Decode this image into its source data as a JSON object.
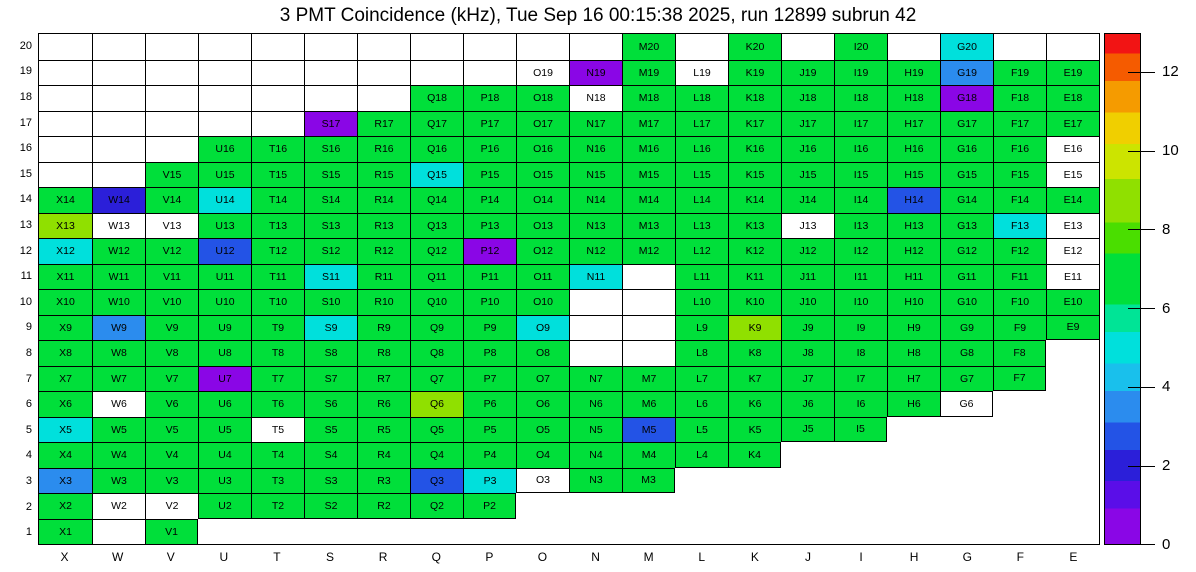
{
  "chart_data": {
    "type": "heatmap",
    "title": "3 PMT Coincidence (kHz), Tue Sep 16 00:15:38 2025, run 12899 subrun 42",
    "timestamp": "Tue Sep 16 00:15:38 2025",
    "run": 12899,
    "subrun": 42,
    "x_labels": [
      "X",
      "W",
      "V",
      "U",
      "T",
      "S",
      "R",
      "Q",
      "P",
      "O",
      "N",
      "M",
      "L",
      "K",
      "J",
      "I",
      "H",
      "G",
      "F",
      "E"
    ],
    "y_labels": [
      "20",
      "19",
      "18",
      "17",
      "16",
      "15",
      "14",
      "13",
      "12",
      "11",
      "10",
      "9",
      "8",
      "7",
      "6",
      "5",
      "4",
      "3",
      "2",
      "1"
    ],
    "zlim": [
      0,
      13
    ],
    "colorbar_ticks": [
      12,
      10,
      8,
      6,
      4,
      2,
      0
    ],
    "legend_position": "right",
    "grid": "cell-outlines",
    "cell_encoding": {
      "number": "estimated rate in kHz read off the color scale",
      "w": "zero-rate channel drawn as white cell with label",
      "e": "empty outlined cell without label",
      "null": "cell not drawn"
    },
    "palette_stops": [
      {
        "to": 0.9,
        "color": "#8a06e6"
      },
      {
        "to": 1.6,
        "color": "#5a0ee8"
      },
      {
        "to": 2.4,
        "color": "#2b1fd9"
      },
      {
        "to": 3.1,
        "color": "#2353e6"
      },
      {
        "to": 3.9,
        "color": "#2b8cee"
      },
      {
        "to": 4.6,
        "color": "#19c0ec"
      },
      {
        "to": 5.4,
        "color": "#00e0dc"
      },
      {
        "to": 6.1,
        "color": "#00e496"
      },
      {
        "to": 7.4,
        "color": "#00df3a"
      },
      {
        "to": 8.2,
        "color": "#4ade00"
      },
      {
        "to": 9.3,
        "color": "#90e000"
      },
      {
        "to": 10.2,
        "color": "#cce400"
      },
      {
        "to": 11.0,
        "color": "#f0cf00"
      },
      {
        "to": 11.8,
        "color": "#f59b00"
      },
      {
        "to": 12.5,
        "color": "#f55b00"
      },
      {
        "to": 13.0,
        "color": "#f21414"
      }
    ],
    "rows": [
      {
        "y": "20",
        "cells": [
          "e",
          "e",
          "e",
          "e",
          "e",
          "e",
          "e",
          "e",
          "e",
          "e",
          "e",
          6.8,
          "e",
          6.8,
          "e",
          6.8,
          "e",
          5.0,
          "e",
          "e"
        ]
      },
      {
        "y": "19",
        "cells": [
          "e",
          "e",
          "e",
          "e",
          "e",
          "e",
          "e",
          "e",
          "e",
          "w",
          0.5,
          6.8,
          "w",
          6.8,
          6.8,
          6.8,
          6.8,
          3.5,
          6.8,
          6.8
        ]
      },
      {
        "y": "18",
        "cells": [
          "e",
          "e",
          "e",
          "e",
          "e",
          "e",
          "e",
          6.8,
          6.8,
          6.8,
          "w",
          6.8,
          6.8,
          6.8,
          6.8,
          6.8,
          6.8,
          0.5,
          6.8,
          6.8
        ]
      },
      {
        "y": "17",
        "cells": [
          "e",
          "e",
          "e",
          "e",
          "e",
          0.5,
          6.8,
          6.8,
          6.8,
          6.8,
          6.8,
          6.8,
          6.8,
          6.8,
          6.8,
          6.8,
          6.8,
          6.8,
          6.8,
          6.8
        ]
      },
      {
        "y": "16",
        "cells": [
          "e",
          "e",
          "e",
          6.8,
          6.8,
          6.8,
          6.8,
          6.8,
          6.8,
          6.8,
          6.8,
          6.8,
          6.8,
          6.8,
          6.8,
          6.8,
          6.8,
          6.8,
          6.8,
          "w"
        ]
      },
      {
        "y": "15",
        "cells": [
          "e",
          "e",
          6.8,
          6.8,
          6.8,
          6.8,
          6.8,
          5.0,
          6.8,
          6.8,
          6.8,
          6.8,
          6.8,
          6.8,
          6.8,
          6.8,
          6.8,
          6.8,
          6.8,
          "w"
        ]
      },
      {
        "y": "14",
        "cells": [
          6.8,
          2.0,
          6.8,
          5.0,
          6.8,
          6.8,
          6.8,
          6.8,
          6.8,
          6.8,
          6.8,
          6.8,
          6.8,
          6.8,
          6.8,
          6.8,
          2.8,
          6.8,
          6.8,
          6.8
        ]
      },
      {
        "y": "13",
        "cells": [
          8.8,
          "w",
          "w",
          6.8,
          6.8,
          6.8,
          6.8,
          6.8,
          6.8,
          6.8,
          6.8,
          6.8,
          6.8,
          6.8,
          "w",
          6.8,
          6.8,
          6.8,
          5.0,
          "w"
        ]
      },
      {
        "y": "12",
        "cells": [
          5.0,
          6.8,
          6.8,
          2.8,
          6.8,
          6.8,
          6.8,
          6.8,
          0.5,
          6.8,
          6.8,
          6.8,
          6.8,
          6.8,
          6.8,
          6.8,
          6.8,
          6.8,
          6.8,
          "w"
        ]
      },
      {
        "y": "11",
        "cells": [
          6.8,
          6.8,
          6.8,
          6.8,
          6.8,
          5.0,
          6.8,
          6.8,
          6.8,
          6.8,
          5.0,
          "e",
          6.8,
          6.8,
          6.8,
          6.8,
          6.8,
          6.8,
          6.8,
          "w"
        ]
      },
      {
        "y": "10",
        "cells": [
          6.8,
          6.8,
          6.8,
          6.8,
          6.8,
          6.8,
          6.8,
          6.8,
          6.8,
          6.8,
          "e",
          "e",
          6.8,
          6.8,
          6.8,
          6.8,
          6.8,
          6.8,
          6.8,
          6.8
        ]
      },
      {
        "y": "9",
        "cells": [
          6.8,
          3.5,
          6.8,
          6.8,
          6.8,
          5.0,
          6.8,
          6.8,
          6.8,
          5.0,
          "e",
          "e",
          6.8,
          8.8,
          6.8,
          6.8,
          6.8,
          6.8,
          6.8,
          6.8
        ]
      },
      {
        "y": "8",
        "cells": [
          6.8,
          6.8,
          6.8,
          6.8,
          6.8,
          6.8,
          6.8,
          6.8,
          6.8,
          6.8,
          "e",
          "e",
          6.8,
          6.8,
          6.8,
          6.8,
          6.8,
          6.8,
          6.8,
          null
        ]
      },
      {
        "y": "7",
        "cells": [
          6.8,
          6.8,
          6.8,
          0.5,
          6.8,
          6.8,
          6.8,
          6.8,
          6.8,
          6.8,
          6.8,
          6.8,
          6.8,
          6.8,
          6.8,
          6.8,
          6.8,
          6.8,
          6.8,
          null
        ]
      },
      {
        "y": "6",
        "cells": [
          6.8,
          "w",
          6.8,
          6.8,
          6.8,
          6.8,
          6.8,
          8.8,
          6.8,
          6.8,
          6.8,
          6.8,
          6.8,
          6.8,
          6.8,
          6.8,
          6.8,
          "w",
          null,
          null
        ]
      },
      {
        "y": "5",
        "cells": [
          5.0,
          6.8,
          6.8,
          6.8,
          "w",
          6.8,
          6.8,
          6.8,
          6.8,
          6.8,
          6.8,
          2.8,
          6.8,
          6.8,
          6.8,
          6.8,
          null,
          null,
          null,
          null
        ]
      },
      {
        "y": "4",
        "cells": [
          6.8,
          6.8,
          6.8,
          6.8,
          6.8,
          6.8,
          6.8,
          6.8,
          6.8,
          6.8,
          6.8,
          6.8,
          6.8,
          6.8,
          null,
          null,
          null,
          null,
          null,
          null
        ]
      },
      {
        "y": "3",
        "cells": [
          3.5,
          6.8,
          6.8,
          6.8,
          6.8,
          6.8,
          6.8,
          2.8,
          5.0,
          "w",
          6.8,
          6.8,
          null,
          null,
          null,
          null,
          null,
          null,
          null,
          null
        ]
      },
      {
        "y": "2",
        "cells": [
          6.8,
          "w",
          "w",
          6.8,
          6.8,
          6.8,
          6.8,
          6.8,
          6.8,
          null,
          null,
          null,
          null,
          null,
          null,
          null,
          null,
          null,
          null,
          null
        ]
      },
      {
        "y": "1",
        "cells": [
          6.8,
          "e",
          6.8,
          null,
          null,
          null,
          null,
          null,
          null,
          null,
          null,
          null,
          null,
          null,
          null,
          null,
          null,
          null,
          null,
          null
        ]
      }
    ]
  },
  "colors": {
    "background": "#ffffff",
    "frame": "#000000",
    "text": "#000000",
    "zero_cell": "#ffffff"
  }
}
